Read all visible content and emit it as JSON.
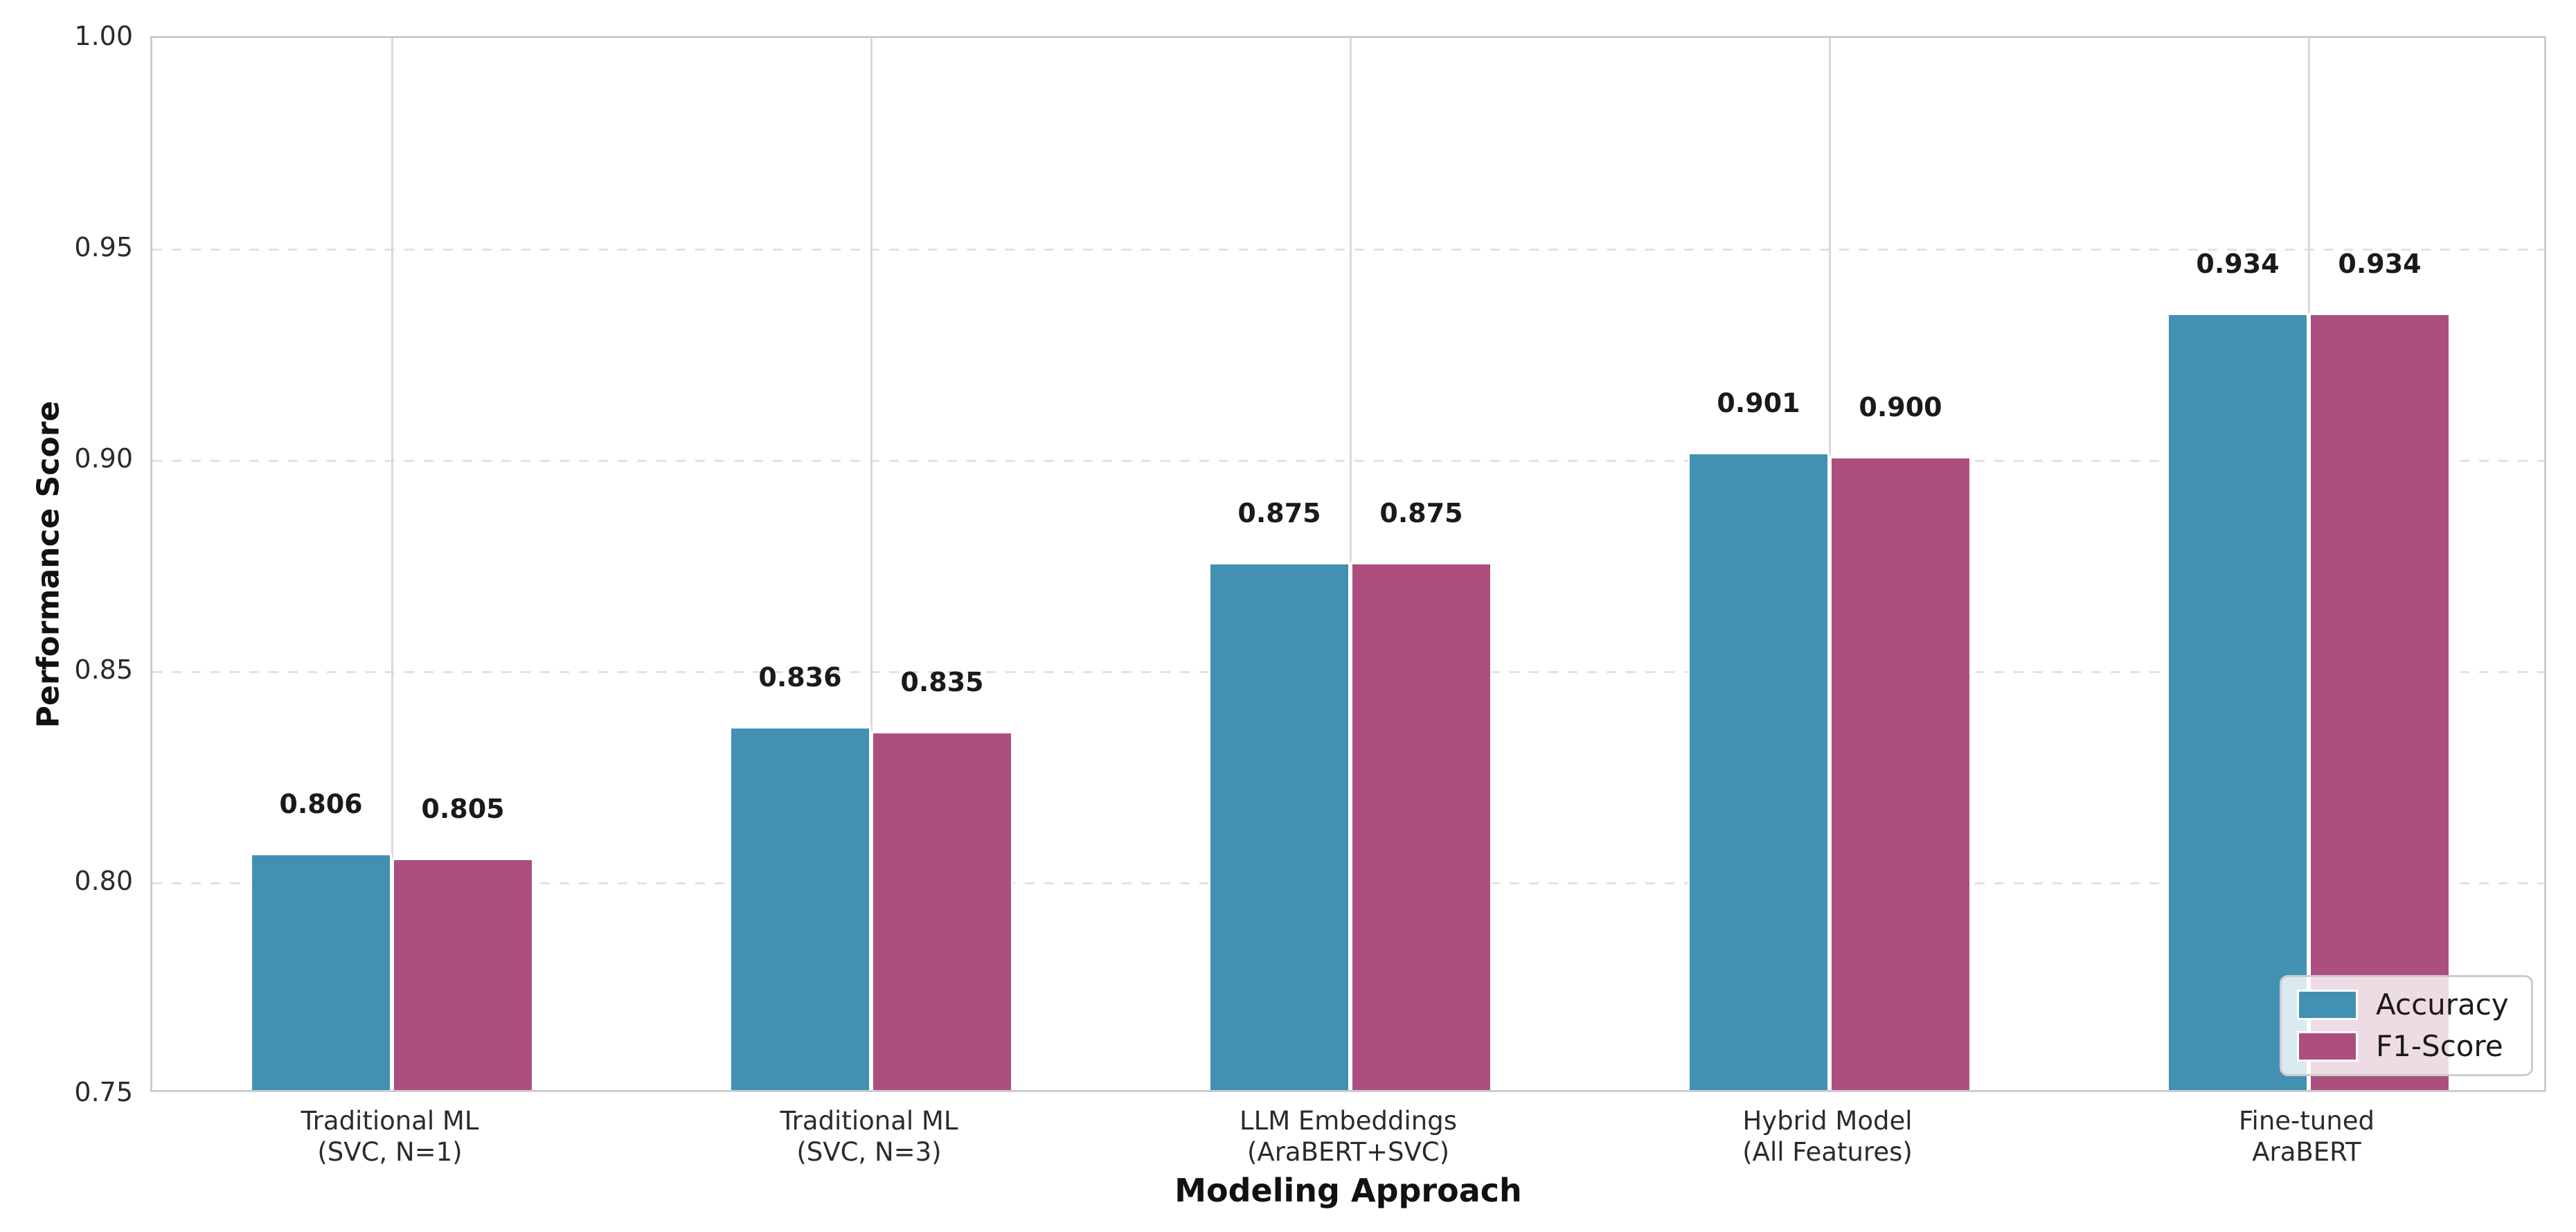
{
  "chart_data": {
    "type": "bar",
    "title": "",
    "xlabel": "Modeling Approach",
    "ylabel": "Performance Score",
    "categories": [
      "Traditional ML\n(SVC, N=1)",
      "Traditional ML\n(SVC, N=3)",
      "LLM Embeddings\n(AraBERT+SVC)",
      "Hybrid Model\n(All Features)",
      "Fine-tuned\nAraBERT"
    ],
    "series": [
      {
        "name": "Accuracy",
        "color": "#4290B2",
        "values": [
          0.806,
          0.836,
          0.875,
          0.901,
          0.934
        ],
        "labels": [
          "0.806",
          "0.836",
          "0.875",
          "0.901",
          "0.934"
        ]
      },
      {
        "name": "F1-Score",
        "color": "#AC4F7E",
        "values": [
          0.805,
          0.835,
          0.875,
          0.9,
          0.934
        ],
        "labels": [
          "0.805",
          "0.835",
          "0.875",
          "0.900",
          "0.934"
        ]
      }
    ],
    "ylim": [
      0.75,
      1.0
    ],
    "yticks": [
      {
        "value": 0.75,
        "label": "0.75"
      },
      {
        "value": 0.8,
        "label": "0.80"
      },
      {
        "value": 0.85,
        "label": "0.85"
      },
      {
        "value": 0.9,
        "label": "0.90"
      },
      {
        "value": 0.95,
        "label": "0.95"
      },
      {
        "value": 1.0,
        "label": "1.00"
      }
    ],
    "grid": {
      "horizontal": "dashed",
      "vertical": "solid",
      "on": true
    },
    "legend": {
      "position": "lower right"
    },
    "bar_edge_color": "#ffffff",
    "style_colors": {
      "spine": "#cccccc",
      "h_gridline": "#e2e2e2",
      "v_gridline": "#d9d9d9",
      "value_text": "#1a1a1a",
      "tick_text": "#2b2b2b"
    }
  }
}
